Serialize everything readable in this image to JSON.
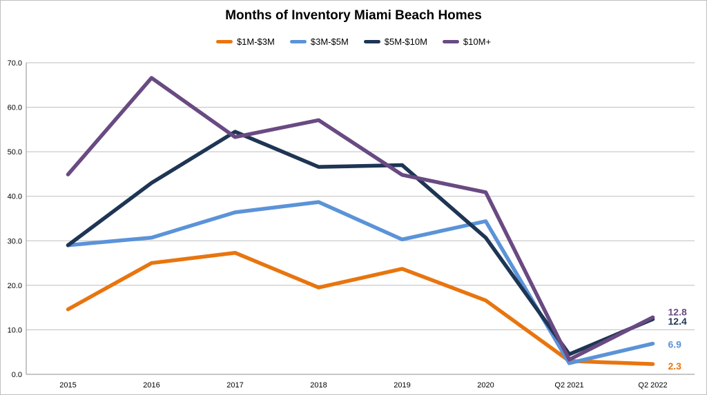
{
  "chart_data": {
    "type": "line",
    "title": "Months of Inventory Miami Beach Homes",
    "xlabel": "",
    "ylabel": "",
    "categories": [
      "2015",
      "2016",
      "2017",
      "2018",
      "2019",
      "2020",
      "Q2 2021",
      "Q2 2022"
    ],
    "ylim": [
      0,
      70
    ],
    "yticks": [
      "0.0",
      "10.0",
      "20.0",
      "30.0",
      "40.0",
      "50.0",
      "60.0",
      "70.0"
    ],
    "grid": true,
    "legend_position": "top",
    "series": [
      {
        "name": "$1M-$3M",
        "color": "#e8750f",
        "values": [
          14.6,
          25.0,
          27.3,
          19.5,
          23.7,
          16.6,
          3.0,
          2.3
        ],
        "end_label": "2.3"
      },
      {
        "name": "$3M-$5M",
        "color": "#5b93d8",
        "values": [
          29.0,
          30.7,
          36.4,
          38.7,
          30.3,
          34.4,
          2.5,
          6.9
        ],
        "end_label": "6.9"
      },
      {
        "name": "$5M-$10M",
        "color": "#1e3554",
        "values": [
          29.0,
          43.0,
          54.5,
          46.6,
          47.0,
          30.7,
          4.5,
          12.4
        ],
        "end_label": "12.4"
      },
      {
        "name": "$10M+",
        "color": "#694a82",
        "values": [
          44.9,
          66.6,
          53.3,
          57.1,
          44.8,
          40.9,
          3.3,
          12.8
        ],
        "end_label": "12.8"
      }
    ]
  }
}
